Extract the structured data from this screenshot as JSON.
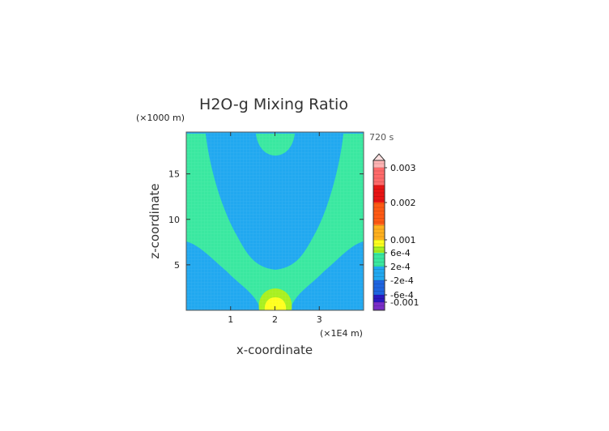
{
  "chart_data": {
    "type": "heatmap",
    "title": "H2O-g Mixing Ratio",
    "xlabel": "x-coordinate",
    "ylabel": "z-coordinate",
    "x_unit": "(×1E4 m)",
    "y_unit": "(×1000 m)",
    "time": "720 s",
    "xlim": [
      0,
      4
    ],
    "ylim": [
      0,
      19.6
    ],
    "x_ticks": [
      1,
      2,
      3
    ],
    "x_tick_labels": [
      "1",
      "2",
      "3"
    ],
    "y_ticks": [
      5,
      10,
      15
    ],
    "y_tick_labels": [
      "5",
      "10",
      "15"
    ],
    "grid": false,
    "colorbar": {
      "placement": "right",
      "labels": [
        "0.003",
        "0.002",
        "0.001",
        "6e-4",
        "2e-4",
        "-2e-4",
        "-6e-4",
        "-0.001"
      ],
      "label_values": [
        0.003,
        0.002,
        0.001,
        0.0006,
        0.0002,
        -0.0002,
        -0.0006,
        -0.001
      ],
      "bands": [
        {
          "from": -0.0014,
          "to": -0.001,
          "color": "#7a2ec8"
        },
        {
          "from": -0.001,
          "to": -0.0006,
          "color": "#2a18c0"
        },
        {
          "from": -0.0006,
          "to": -0.0002,
          "color": "#1e64e0"
        },
        {
          "from": -0.0002,
          "to": 0.0002,
          "color": "#21a8f0"
        },
        {
          "from": 0.0002,
          "to": 0.0006,
          "color": "#3ae8a0"
        },
        {
          "from": 0.0006,
          "to": 0.0008,
          "color": "#a8f020"
        },
        {
          "from": 0.0008,
          "to": 0.001,
          "color": "#ffff1e"
        },
        {
          "from": 0.001,
          "to": 0.0014,
          "color": "#ffb01e"
        },
        {
          "from": 0.0014,
          "to": 0.002,
          "color": "#ff5a14"
        },
        {
          "from": 0.002,
          "to": 0.0025,
          "color": "#e81414"
        },
        {
          "from": 0.0025,
          "to": 0.003,
          "color": "#ff6a6a"
        },
        {
          "from": 0.003,
          "to": 0.0034,
          "color": "#ffb4b4"
        }
      ]
    },
    "regions": [
      {
        "level": "2e-4 to 6e-4",
        "color": "#3ae8a0",
        "description": "background outside V-shaped plume and near top boundary"
      },
      {
        "level": "-2e-4 to 2e-4",
        "color": "#21a8f0",
        "description": "V-shaped region spanning x 0.5-3.8 from z 4.7 to top; lower corners below z 7.5"
      },
      {
        "level": "2e-4 to 6e-4",
        "color": "#3ae8a0",
        "description": "cap at top centered x 2.0, z 17.2-19.6"
      },
      {
        "level": "6e-4 to 8e-4",
        "color": "#a8f020",
        "description": "near-surface maximum centered x 2.0, z 0-2.4"
      },
      {
        "level": "8e-4 to 0.001",
        "color": "#ffff1e",
        "description": "core of near-surface maximum, z 0-1.2"
      }
    ]
  }
}
